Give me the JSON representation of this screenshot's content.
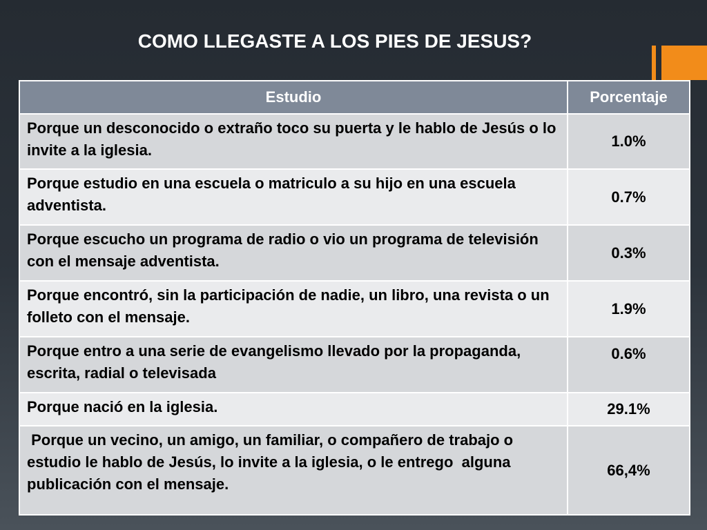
{
  "title": "COMO LLEGASTE A LOS PIES DE JESUS?",
  "table": {
    "headers": [
      "Estudio",
      "Porcentaje"
    ],
    "rows": [
      {
        "estudio": "Porque un desconocido o extraño toco su puerta y le hablo de Jesús o lo invite a la iglesia.",
        "porcentaje": "1.0%"
      },
      {
        "estudio": "Porque estudio en una escuela o matriculo a su hijo en una escuela adventista.",
        "porcentaje": "0.7%"
      },
      {
        "estudio": "Porque escucho un programa de radio o vio un programa de televisión con el mensaje adventista.",
        "porcentaje": "0.3%"
      },
      {
        "estudio": "Porque encontró, sin la participación de nadie, un libro, una revista o un folleto con el mensaje.",
        "porcentaje": "1.9%"
      },
      {
        "estudio": "Porque entro a una serie de evangelismo llevado por la propaganda, escrita, radial o televisada",
        "porcentaje": "0.6%"
      },
      {
        "estudio": "Porque nació en la iglesia.",
        "porcentaje": "29.1%"
      },
      {
        "estudio": " Porque un vecino, un amigo, un familiar, o compañero de trabajo o estudio le hablo de Jesús, lo invite a la iglesia, o le entrego  alguna publicación con el mensaje.",
        "porcentaje": "66,4%"
      }
    ]
  },
  "colors": {
    "accent": "#f28c1a",
    "header_bg": "#7f8998",
    "row_odd": "#d5d7da",
    "row_even": "#eaebed"
  }
}
